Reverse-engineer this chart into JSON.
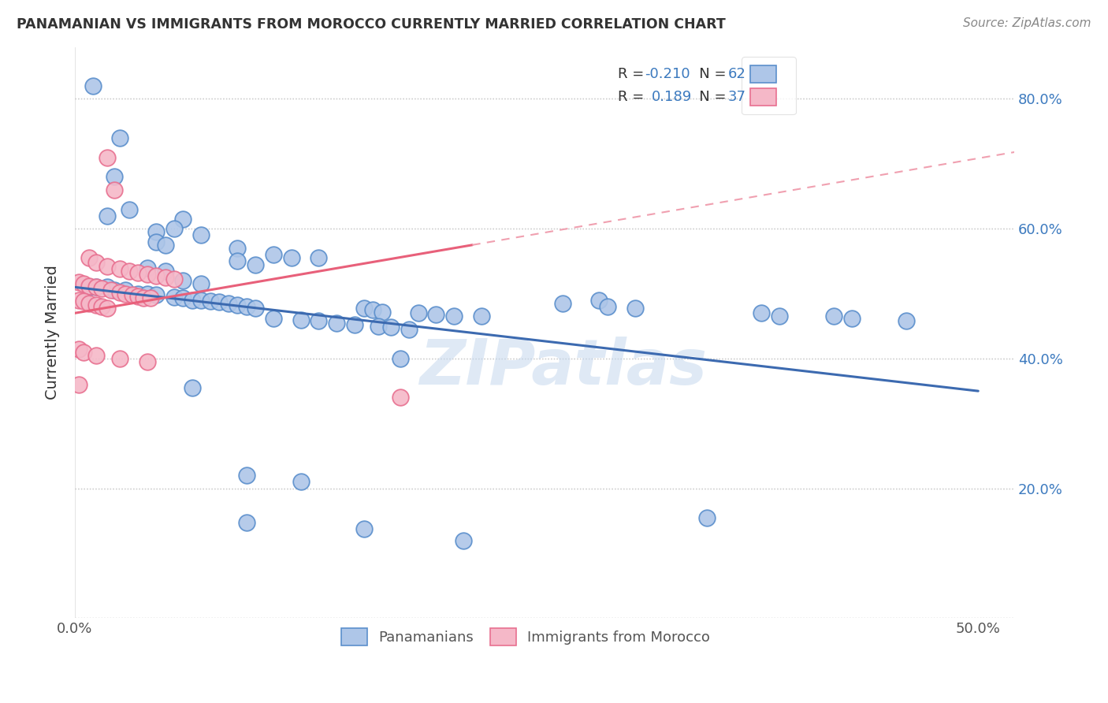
{
  "title": "PANAMANIAN VS IMMIGRANTS FROM MOROCCO CURRENTLY MARRIED CORRELATION CHART",
  "source": "Source: ZipAtlas.com",
  "ylabel": "Currently Married",
  "xlim": [
    0.0,
    0.52
  ],
  "ylim": [
    0.0,
    0.88
  ],
  "x_tick_positions": [
    0.0,
    0.1,
    0.2,
    0.3,
    0.4,
    0.5
  ],
  "x_tick_labels": [
    "0.0%",
    "",
    "",
    "",
    "",
    "50.0%"
  ],
  "y_tick_positions": [
    0.0,
    0.2,
    0.4,
    0.6,
    0.8
  ],
  "y_tick_labels_right": [
    "",
    "20.0%",
    "40.0%",
    "60.0%",
    "80.0%"
  ],
  "color_blue_face": "#aec6e8",
  "color_blue_edge": "#5b8fcc",
  "color_pink_face": "#f5b8c8",
  "color_pink_edge": "#e87090",
  "line_blue_color": "#3c6ab0",
  "line_pink_solid_color": "#e8607a",
  "line_pink_dashed_color": "#f0a0b0",
  "watermark": "ZIPatlas",
  "blue_points": [
    [
      0.01,
      0.82
    ],
    [
      0.025,
      0.74
    ],
    [
      0.022,
      0.68
    ],
    [
      0.03,
      0.63
    ],
    [
      0.018,
      0.62
    ],
    [
      0.06,
      0.615
    ],
    [
      0.055,
      0.6
    ],
    [
      0.045,
      0.595
    ],
    [
      0.07,
      0.59
    ],
    [
      0.045,
      0.58
    ],
    [
      0.05,
      0.575
    ],
    [
      0.09,
      0.57
    ],
    [
      0.11,
      0.56
    ],
    [
      0.12,
      0.555
    ],
    [
      0.135,
      0.555
    ],
    [
      0.09,
      0.55
    ],
    [
      0.1,
      0.545
    ],
    [
      0.04,
      0.54
    ],
    [
      0.05,
      0.535
    ],
    [
      0.06,
      0.52
    ],
    [
      0.07,
      0.515
    ],
    [
      0.008,
      0.51
    ],
    [
      0.012,
      0.51
    ],
    [
      0.018,
      0.51
    ],
    [
      0.022,
      0.505
    ],
    [
      0.028,
      0.505
    ],
    [
      0.035,
      0.5
    ],
    [
      0.04,
      0.5
    ],
    [
      0.045,
      0.498
    ],
    [
      0.055,
      0.495
    ],
    [
      0.06,
      0.493
    ],
    [
      0.065,
      0.49
    ],
    [
      0.07,
      0.49
    ],
    [
      0.075,
      0.488
    ],
    [
      0.08,
      0.487
    ],
    [
      0.085,
      0.485
    ],
    [
      0.09,
      0.482
    ],
    [
      0.095,
      0.48
    ],
    [
      0.1,
      0.478
    ],
    [
      0.16,
      0.478
    ],
    [
      0.165,
      0.475
    ],
    [
      0.17,
      0.472
    ],
    [
      0.19,
      0.47
    ],
    [
      0.2,
      0.468
    ],
    [
      0.21,
      0.465
    ],
    [
      0.225,
      0.465
    ],
    [
      0.11,
      0.462
    ],
    [
      0.125,
      0.46
    ],
    [
      0.135,
      0.458
    ],
    [
      0.145,
      0.455
    ],
    [
      0.155,
      0.452
    ],
    [
      0.168,
      0.45
    ],
    [
      0.175,
      0.448
    ],
    [
      0.185,
      0.445
    ],
    [
      0.29,
      0.49
    ],
    [
      0.27,
      0.485
    ],
    [
      0.295,
      0.48
    ],
    [
      0.31,
      0.478
    ],
    [
      0.18,
      0.4
    ],
    [
      0.38,
      0.47
    ],
    [
      0.39,
      0.466
    ],
    [
      0.42,
      0.465
    ],
    [
      0.43,
      0.462
    ],
    [
      0.46,
      0.458
    ],
    [
      0.065,
      0.355
    ],
    [
      0.095,
      0.22
    ],
    [
      0.125,
      0.21
    ],
    [
      0.095,
      0.148
    ],
    [
      0.16,
      0.138
    ],
    [
      0.35,
      0.155
    ],
    [
      0.215,
      0.12
    ]
  ],
  "pink_points": [
    [
      0.018,
      0.71
    ],
    [
      0.022,
      0.66
    ],
    [
      0.008,
      0.555
    ],
    [
      0.012,
      0.548
    ],
    [
      0.018,
      0.542
    ],
    [
      0.025,
      0.538
    ],
    [
      0.03,
      0.535
    ],
    [
      0.035,
      0.532
    ],
    [
      0.04,
      0.53
    ],
    [
      0.045,
      0.527
    ],
    [
      0.05,
      0.525
    ],
    [
      0.055,
      0.522
    ],
    [
      0.002,
      0.518
    ],
    [
      0.005,
      0.515
    ],
    [
      0.008,
      0.512
    ],
    [
      0.012,
      0.51
    ],
    [
      0.015,
      0.508
    ],
    [
      0.02,
      0.505
    ],
    [
      0.025,
      0.502
    ],
    [
      0.028,
      0.5
    ],
    [
      0.032,
      0.498
    ],
    [
      0.035,
      0.496
    ],
    [
      0.038,
      0.494
    ],
    [
      0.042,
      0.493
    ],
    [
      0.002,
      0.49
    ],
    [
      0.005,
      0.488
    ],
    [
      0.008,
      0.485
    ],
    [
      0.012,
      0.482
    ],
    [
      0.015,
      0.48
    ],
    [
      0.018,
      0.478
    ],
    [
      0.002,
      0.415
    ],
    [
      0.005,
      0.41
    ],
    [
      0.012,
      0.405
    ],
    [
      0.025,
      0.4
    ],
    [
      0.04,
      0.395
    ],
    [
      0.002,
      0.36
    ],
    [
      0.18,
      0.34
    ]
  ],
  "blue_line_x": [
    0.0,
    0.5
  ],
  "blue_line_y": [
    0.51,
    0.35
  ],
  "pink_solid_line_x": [
    0.0,
    0.22
  ],
  "pink_solid_line_y": [
    0.47,
    0.575
  ],
  "pink_dashed_line_x": [
    0.22,
    0.52
  ],
  "pink_dashed_line_y": [
    0.575,
    0.718
  ]
}
